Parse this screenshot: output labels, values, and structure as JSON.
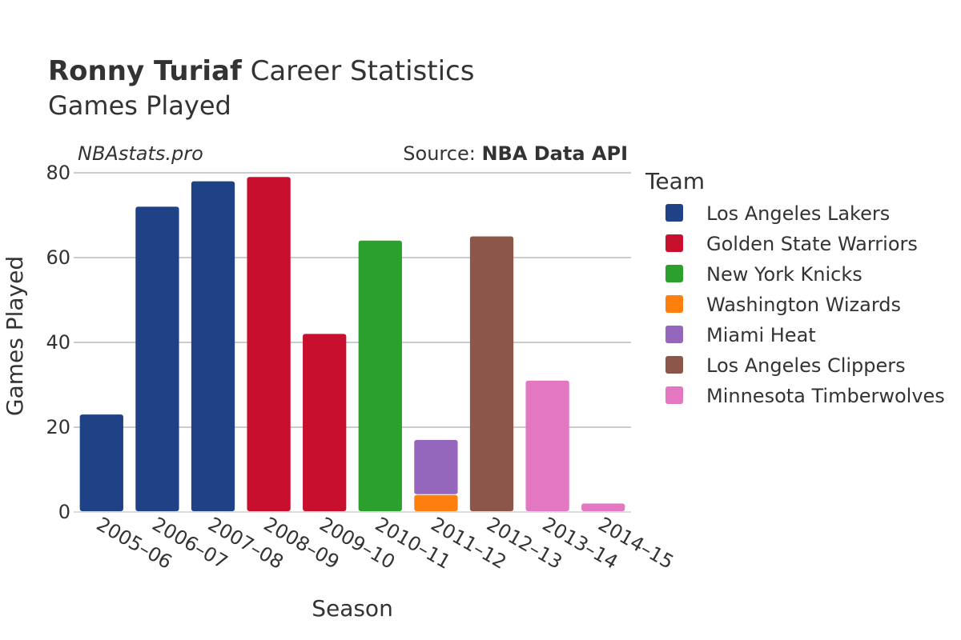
{
  "title": {
    "bold": "Ronny Turiaf",
    "rest": " Career Statistics",
    "subtitle": "Games Played"
  },
  "watermark": "NBAstats.pro",
  "source": {
    "prefix": "Source: ",
    "name": "NBA Data API"
  },
  "colors": {
    "text": "#333333",
    "grid": "#999999",
    "muted": "#555555"
  },
  "chart_data": {
    "type": "bar",
    "stacked": true,
    "xlabel": "Season",
    "ylabel": "Games Played",
    "ylim": [
      0,
      80
    ],
    "yticks": [
      0,
      20,
      40,
      60,
      80
    ],
    "grid": true,
    "legend_title": "Team",
    "legend_position": "right",
    "categories": [
      "2005–06",
      "2006–07",
      "2007–08",
      "2008–09",
      "2009–10",
      "2010–11",
      "2011–12",
      "2012–13",
      "2013–14",
      "2014–15"
    ],
    "series": [
      {
        "name": "Los Angeles Lakers",
        "color": "#1f4287",
        "values": [
          23,
          72,
          78,
          null,
          null,
          null,
          null,
          null,
          null,
          null
        ]
      },
      {
        "name": "Golden State Warriors",
        "color": "#c8102e",
        "values": [
          null,
          null,
          null,
          79,
          42,
          null,
          null,
          null,
          null,
          null
        ]
      },
      {
        "name": "New York Knicks",
        "color": "#2ca02c",
        "values": [
          null,
          null,
          null,
          null,
          null,
          64,
          null,
          null,
          null,
          null
        ]
      },
      {
        "name": "Washington Wizards",
        "color": "#ff7f0e",
        "values": [
          null,
          null,
          null,
          null,
          null,
          null,
          4,
          null,
          null,
          null
        ]
      },
      {
        "name": "Miami Heat",
        "color": "#9467bd",
        "values": [
          null,
          null,
          null,
          null,
          null,
          null,
          13,
          null,
          null,
          null
        ]
      },
      {
        "name": "Los Angeles Clippers",
        "color": "#8c564b",
        "values": [
          null,
          null,
          null,
          null,
          null,
          null,
          null,
          65,
          null,
          null
        ]
      },
      {
        "name": "Minnesota Timberwolves",
        "color": "#e377c2",
        "values": [
          null,
          null,
          null,
          null,
          null,
          null,
          null,
          null,
          31,
          2
        ]
      }
    ]
  }
}
